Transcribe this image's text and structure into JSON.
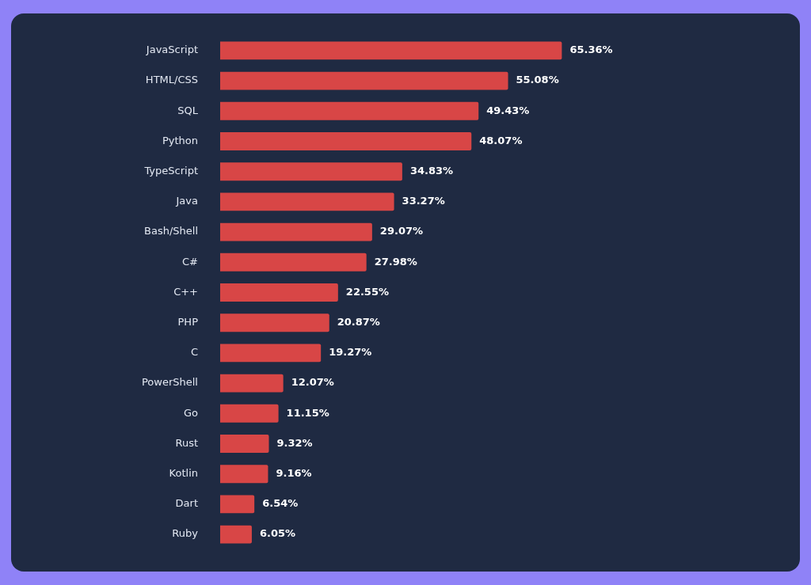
{
  "chart_data": {
    "type": "bar",
    "orientation": "horizontal",
    "categories": [
      "JavaScript",
      "HTML/CSS",
      "SQL",
      "Python",
      "TypeScript",
      "Java",
      "Bash/Shell",
      "C#",
      "C++",
      "PHP",
      "C",
      "PowerShell",
      "Go",
      "Rust",
      "Kotlin",
      "Dart",
      "Ruby"
    ],
    "values": [
      65.36,
      55.08,
      49.43,
      48.07,
      34.83,
      33.27,
      29.07,
      27.98,
      22.55,
      20.87,
      19.27,
      12.07,
      11.15,
      9.32,
      9.16,
      6.54,
      6.05
    ],
    "value_labels": [
      "65.36%",
      "55.08%",
      "49.43%",
      "48.07%",
      "34.83%",
      "33.27%",
      "29.07%",
      "27.98%",
      "22.55%",
      "20.87%",
      "19.27%",
      "12.07%",
      "11.15%",
      "9.32%",
      "9.16%",
      "6.54%",
      "6.05%"
    ],
    "color": "#d84646"
  }
}
